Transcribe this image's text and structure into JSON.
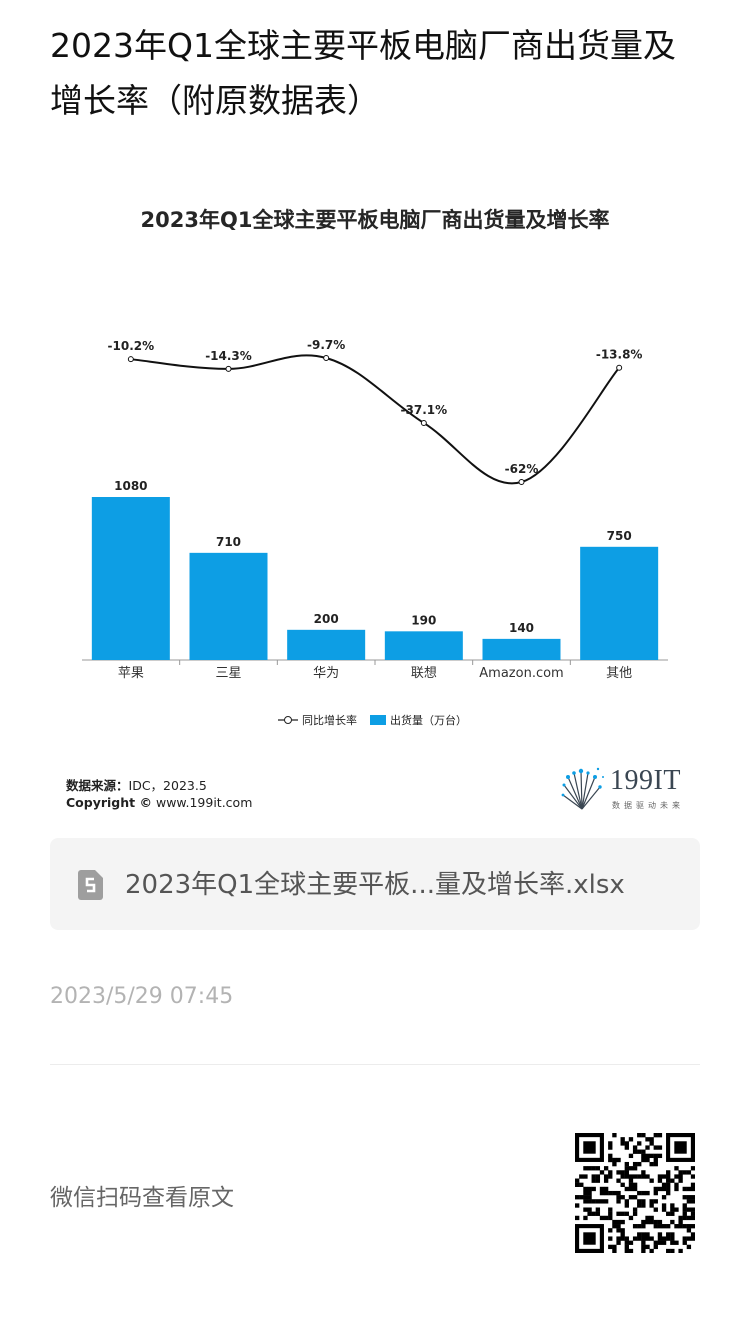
{
  "article": {
    "title": "2023年Q1全球主要平板电脑厂商出货量及增长率（附原数据表）"
  },
  "chart_data": {
    "type": "bar",
    "title": "2023年Q1全球主要平板电脑厂商出货量及增长率",
    "categories": [
      "苹果",
      "三星",
      "华为",
      "联想",
      "Amazon.com",
      "其他"
    ],
    "series": [
      {
        "name": "出货量（万台）",
        "type": "bar",
        "values": [
          1080,
          710,
          200,
          190,
          140,
          750
        ],
        "color": "#0d9ee4"
      },
      {
        "name": "同比增长率",
        "type": "line",
        "values": [
          -10.2,
          -14.3,
          -9.7,
          -37.1,
          -62,
          -13.8
        ],
        "labels": [
          "-10.2%",
          "-14.3%",
          "-9.7%",
          "-37.1%",
          "-62%",
          "-13.8%"
        ],
        "color": "#111111"
      }
    ],
    "xlabel": "",
    "ylabel": "",
    "legend": "bottom",
    "grid": false
  },
  "source": {
    "label": "数据来源：",
    "value": "IDC，2023.5",
    "copyright_label": "Copyright ©",
    "copyright_value": "www.199it.com"
  },
  "brand": {
    "name": "199IT",
    "slogan": "数据驱动未来"
  },
  "attachment": {
    "icon": "spreadsheet-file-icon",
    "filename": "2023年Q1全球主要平板...量及增长率.xlsx"
  },
  "post": {
    "date": "2023/5/29 07:45"
  },
  "footer": {
    "qr_prompt": "微信扫码查看原文",
    "qr_icon": "qr-code-icon"
  }
}
